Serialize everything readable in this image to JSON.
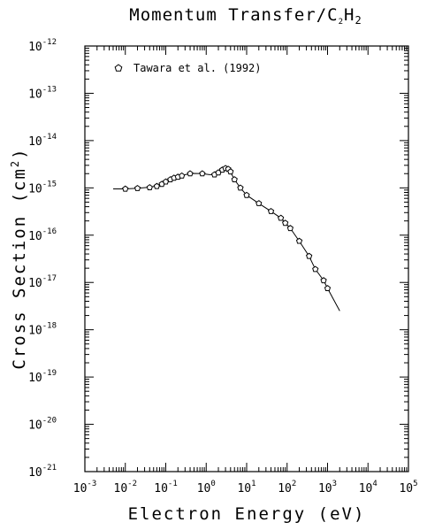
{
  "chart_data": {
    "type": "scatter",
    "title_main": "Momentum Transfer/C",
    "title_sub1": "2",
    "title_mid": "H",
    "title_sub2": "2",
    "xlabel": "Electron Energy (eV)",
    "ylabel_main": "Cross Section (cm",
    "ylabel_sup": "2",
    "ylabel_end": ")",
    "x_scale": "log",
    "y_scale": "log",
    "xlim": [
      0.001,
      100000
    ],
    "ylim": [
      1e-21,
      1e-12
    ],
    "x_ticks": [
      {
        "base": "10",
        "exp": "-3"
      },
      {
        "base": "10",
        "exp": "-2"
      },
      {
        "base": "10",
        "exp": "-1"
      },
      {
        "base": "10",
        "exp": "0"
      },
      {
        "base": "10",
        "exp": "1"
      },
      {
        "base": "10",
        "exp": "2"
      },
      {
        "base": "10",
        "exp": "3"
      },
      {
        "base": "10",
        "exp": "4"
      },
      {
        "base": "10",
        "exp": "5"
      }
    ],
    "y_ticks": [
      {
        "base": "10",
        "exp": "-21"
      },
      {
        "base": "10",
        "exp": "-20"
      },
      {
        "base": "10",
        "exp": "-19"
      },
      {
        "base": "10",
        "exp": "-18"
      },
      {
        "base": "10",
        "exp": "-17"
      },
      {
        "base": "10",
        "exp": "-16"
      },
      {
        "base": "10",
        "exp": "-15"
      },
      {
        "base": "10",
        "exp": "-14"
      },
      {
        "base": "10",
        "exp": "-13"
      },
      {
        "base": "10",
        "exp": "-12"
      }
    ],
    "grid": false,
    "legend_position": "top-left",
    "series": [
      {
        "name": "Tawara et al. (1992)",
        "marker": "open-pentagon",
        "points": [
          {
            "x": 0.01,
            "y": 9.5e-16
          },
          {
            "x": 0.02,
            "y": 9.8e-16
          },
          {
            "x": 0.04,
            "y": 1.02e-15
          },
          {
            "x": 0.06,
            "y": 1.08e-15
          },
          {
            "x": 0.08,
            "y": 1.2e-15
          },
          {
            "x": 0.1,
            "y": 1.35e-15
          },
          {
            "x": 0.13,
            "y": 1.5e-15
          },
          {
            "x": 0.16,
            "y": 1.62e-15
          },
          {
            "x": 0.2,
            "y": 1.7e-15
          },
          {
            "x": 0.25,
            "y": 1.8e-15
          },
          {
            "x": 0.4,
            "y": 2e-15
          },
          {
            "x": 0.8,
            "y": 2e-15
          },
          {
            "x": 1.6,
            "y": 1.9e-15
          },
          {
            "x": 2.0,
            "y": 2.1e-15
          },
          {
            "x": 2.5,
            "y": 2.4e-15
          },
          {
            "x": 3.0,
            "y": 2.6e-15
          },
          {
            "x": 3.5,
            "y": 2.5e-15
          },
          {
            "x": 4.0,
            "y": 2.2e-15
          },
          {
            "x": 5.0,
            "y": 1.5e-15
          },
          {
            "x": 7.0,
            "y": 1e-15
          },
          {
            "x": 10.0,
            "y": 7e-16
          },
          {
            "x": 20.0,
            "y": 4.7e-16
          },
          {
            "x": 40.0,
            "y": 3.2e-16
          },
          {
            "x": 70.0,
            "y": 2.3e-16
          },
          {
            "x": 90.0,
            "y": 1.8e-16
          },
          {
            "x": 120.0,
            "y": 1.4e-16
          },
          {
            "x": 200.0,
            "y": 7.5e-17
          },
          {
            "x": 350.0,
            "y": 3.6e-17
          },
          {
            "x": 500.0,
            "y": 1.9e-17
          },
          {
            "x": 800.0,
            "y": 1.1e-17
          },
          {
            "x": 1000.0,
            "y": 7.5e-18
          }
        ]
      }
    ],
    "curve": {
      "style": "solid-line",
      "points": [
        {
          "x": 0.005,
          "y": 9.5e-16
        },
        {
          "x": 0.01,
          "y": 9.5e-16
        },
        {
          "x": 0.02,
          "y": 9.8e-16
        },
        {
          "x": 0.04,
          "y": 1.03e-15
        },
        {
          "x": 0.06,
          "y": 1.1e-15
        },
        {
          "x": 0.08,
          "y": 1.22e-15
        },
        {
          "x": 0.1,
          "y": 1.37e-15
        },
        {
          "x": 0.13,
          "y": 1.52e-15
        },
        {
          "x": 0.16,
          "y": 1.63e-15
        },
        {
          "x": 0.2,
          "y": 1.72e-15
        },
        {
          "x": 0.3,
          "y": 1.9e-15
        },
        {
          "x": 0.5,
          "y": 2.02e-15
        },
        {
          "x": 0.8,
          "y": 2e-15
        },
        {
          "x": 1.2,
          "y": 1.9e-15
        },
        {
          "x": 1.6,
          "y": 1.9e-15
        },
        {
          "x": 2.0,
          "y": 2.1e-15
        },
        {
          "x": 2.5,
          "y": 2.45e-15
        },
        {
          "x": 3.0,
          "y": 2.6e-15
        },
        {
          "x": 3.5,
          "y": 2.45e-15
        },
        {
          "x": 4.0,
          "y": 2.15e-15
        },
        {
          "x": 5.0,
          "y": 1.5e-15
        },
        {
          "x": 7.0,
          "y": 1e-15
        },
        {
          "x": 10.0,
          "y": 7e-16
        },
        {
          "x": 20.0,
          "y": 4.7e-16
        },
        {
          "x": 40.0,
          "y": 3.2e-16
        },
        {
          "x": 70.0,
          "y": 2.3e-16
        },
        {
          "x": 90.0,
          "y": 1.85e-16
        },
        {
          "x": 120.0,
          "y": 1.4e-16
        },
        {
          "x": 200.0,
          "y": 7.5e-17
        },
        {
          "x": 350.0,
          "y": 3.6e-17
        },
        {
          "x": 500.0,
          "y": 1.9e-17
        },
        {
          "x": 800.0,
          "y": 1.1e-17
        },
        {
          "x": 1000.0,
          "y": 7.5e-18
        },
        {
          "x": 2000.0,
          "y": 2.5e-18
        }
      ]
    }
  }
}
